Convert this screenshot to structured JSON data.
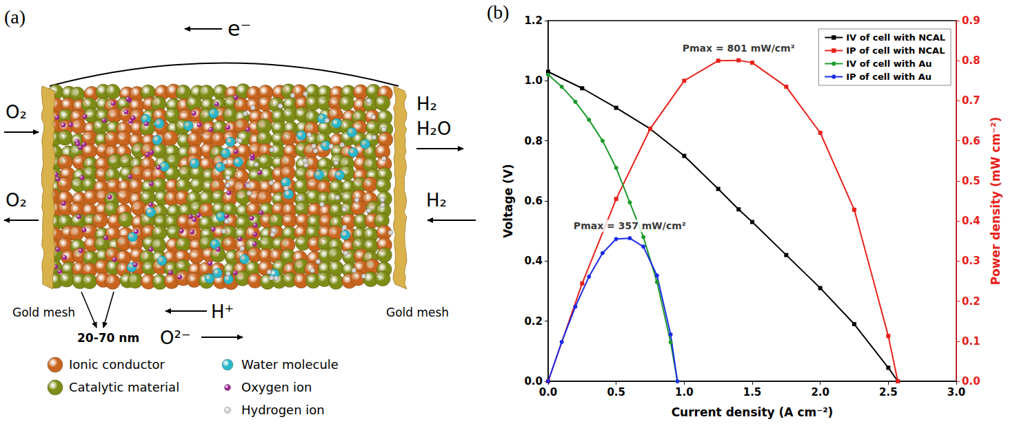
{
  "panel_a": {
    "label": "(a)",
    "electron": "e⁻",
    "left_in": "O₂",
    "left_out": "O₂",
    "right_out": [
      "H₂",
      "H₂O"
    ],
    "right_in": "H₂",
    "mesh_left": "Gold mesh",
    "mesh_right": "Gold mesh",
    "size": "20-70 nm",
    "proton": "H⁺",
    "oxide": "O²⁻",
    "legend": [
      {
        "label": "Ionic conductor",
        "color": "#c8641e"
      },
      {
        "label": "Water molecule",
        "color": "#2bb7c9"
      },
      {
        "label": "Catalytic material",
        "color": "#7d8c16"
      },
      {
        "label": "Oxygen ion",
        "color": "#9c2490"
      },
      {
        "label": "Hydrogen ion",
        "color": "#d8d8d8"
      }
    ]
  },
  "panel_b_label": "(b)",
  "chart_data": {
    "type": "line",
    "x_label": "Current density (A cm⁻²)",
    "y_label": "Voltage (V)",
    "y2_label": "Power density (mW cm⁻²)",
    "xlim": [
      0,
      3
    ],
    "xticks": [
      {
        "value": 0,
        "label": "0.0"
      },
      0.5,
      {
        "value": 1,
        "label": "1.0"
      },
      1.5,
      {
        "value": 2,
        "label": "2.0"
      },
      2.5,
      {
        "value": 3,
        "label": "3.0"
      }
    ],
    "ylim": [
      0,
      1.2
    ],
    "yticks": [
      {
        "value": 0,
        "label": "0.0"
      },
      0.2,
      0.4,
      0.6,
      0.8,
      {
        "value": 1,
        "label": "1.0"
      },
      1.2
    ],
    "y2lim": [
      0,
      0.9
    ],
    "y2ticks": [
      {
        "value": 0,
        "label": "0.0"
      },
      0.1,
      0.2,
      0.3,
      0.4,
      0.5,
      0.6,
      0.7,
      0.8,
      0.9
    ],
    "grid": false,
    "legend": "upper right",
    "series": [
      {
        "name": "IV of cell with NCAL",
        "color": "#000000",
        "marker": "square",
        "x": [
          0,
          0.25,
          0.5,
          0.75,
          1.0,
          1.25,
          1.4,
          1.5,
          1.75,
          2.0,
          2.25,
          2.5,
          2.57
        ],
        "values": [
          1.03,
          0.975,
          0.91,
          0.84,
          0.75,
          0.64,
          0.572,
          0.53,
          0.42,
          0.31,
          0.19,
          0.045,
          0
        ]
      },
      {
        "name": "IP of cell with NCAL",
        "color": "#e8201a",
        "marker": "square",
        "axis": "y2",
        "x": [
          0,
          0.25,
          0.5,
          0.75,
          1.0,
          1.25,
          1.4,
          1.5,
          1.75,
          2.0,
          2.25,
          2.5,
          2.57
        ],
        "values": [
          0,
          0.244,
          0.455,
          0.63,
          0.75,
          0.8,
          0.801,
          0.795,
          0.735,
          0.62,
          0.428,
          0.113,
          0
        ]
      },
      {
        "name": "IV of cell with Au",
        "color": "#1a9a2a",
        "marker": "circle",
        "x": [
          0,
          0.1,
          0.2,
          0.3,
          0.4,
          0.5,
          0.6,
          0.7,
          0.8,
          0.9,
          0.95
        ],
        "values": [
          1.02,
          0.98,
          0.93,
          0.87,
          0.8,
          0.71,
          0.595,
          0.48,
          0.33,
          0.13,
          0
        ]
      },
      {
        "name": "IP of cell with Au",
        "color": "#1a2ae8",
        "marker": "circle",
        "axis": "y2",
        "x": [
          0,
          0.1,
          0.2,
          0.3,
          0.4,
          0.5,
          0.6,
          0.7,
          0.8,
          0.9,
          0.95
        ],
        "values": [
          0,
          0.098,
          0.186,
          0.261,
          0.32,
          0.355,
          0.357,
          0.336,
          0.264,
          0.117,
          0
        ]
      }
    ],
    "annotations": [
      {
        "text": "Pmax = 801 mW/cm²",
        "series": "IP of cell with NCAL"
      },
      {
        "text": "Pmax = 357 mW/cm²",
        "series": "IP of cell with Au"
      }
    ]
  }
}
